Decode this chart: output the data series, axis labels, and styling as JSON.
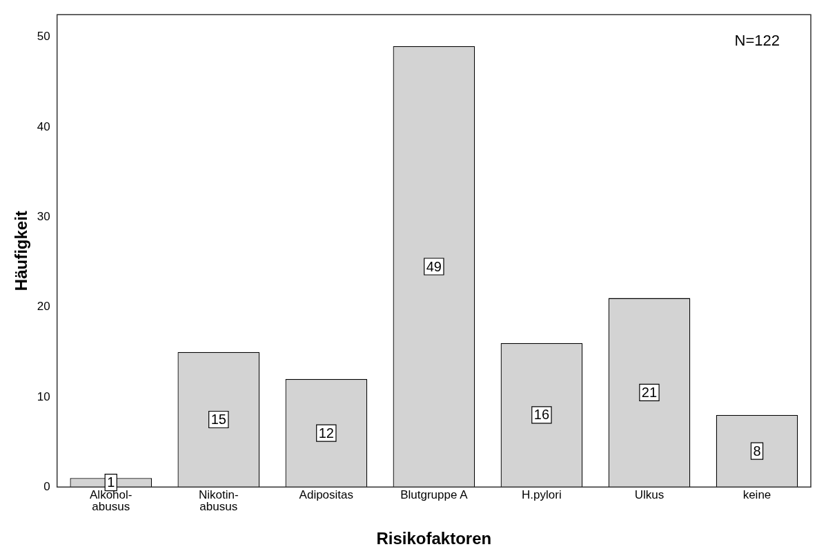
{
  "chart_data": {
    "type": "bar",
    "xlabel": "Risikofaktoren",
    "ylabel": "Häufigkeit",
    "categories": [
      "Alkohol-\nabusus",
      "Nikotin-\nabusus",
      "Adipositas",
      "Blutgruppe A",
      "H.pylori",
      "Ulkus",
      "keine"
    ],
    "values": [
      1,
      15,
      12,
      49,
      16,
      21,
      8
    ],
    "color": "#d3d3d3",
    "ylim": [
      0,
      52.5
    ],
    "yticks": [
      0,
      10,
      20,
      30,
      40,
      50
    ],
    "grid": false,
    "legend": false,
    "data_labels": true,
    "annotations": [
      "N=122"
    ]
  }
}
